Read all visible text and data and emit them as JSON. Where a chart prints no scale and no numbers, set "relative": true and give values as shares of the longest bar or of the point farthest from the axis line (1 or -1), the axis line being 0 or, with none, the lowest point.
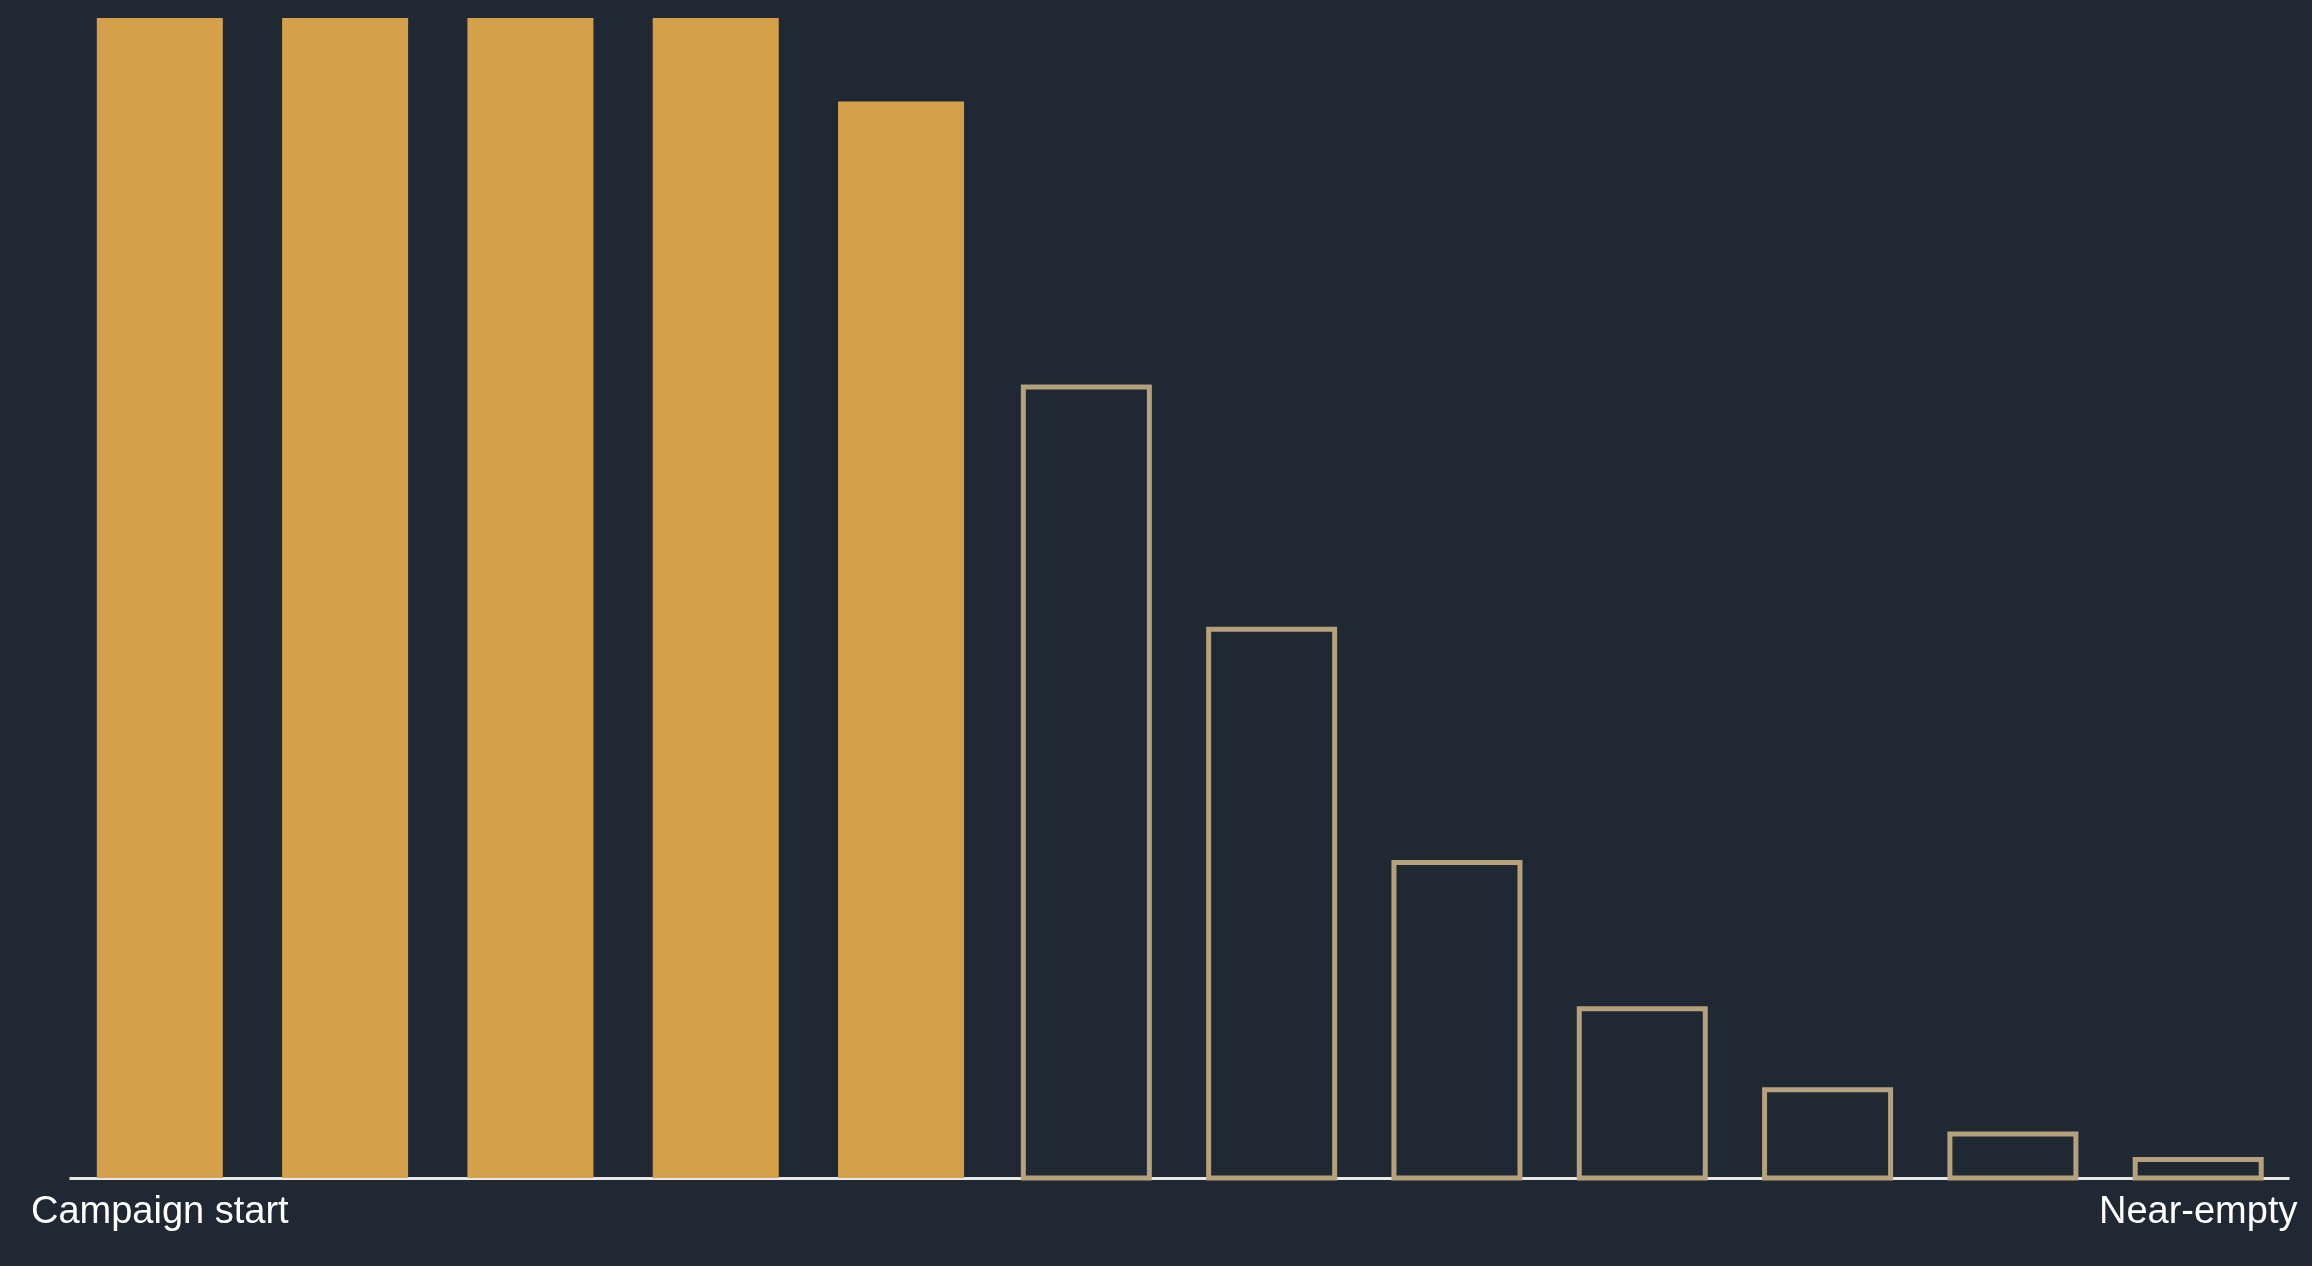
{
  "chart_data": {
    "type": "bar",
    "relative": true,
    "categories": [
      "Campaign start",
      null,
      null,
      null,
      null,
      null,
      null,
      null,
      null,
      null,
      null,
      "Near-empty"
    ],
    "series": [
      {
        "color": "#d4a04a",
        "values": [
          1,
          1,
          1,
          1,
          0.928,
          null,
          null,
          null,
          null,
          null,
          null,
          null
        ]
      },
      {
        "color": "#b5a27c",
        "values": [
          null,
          null,
          null,
          null,
          null,
          0.682,
          0.473,
          0.272,
          0.146,
          0.076,
          0.038,
          0.016
        ]
      }
    ],
    "grid": false
  }
}
